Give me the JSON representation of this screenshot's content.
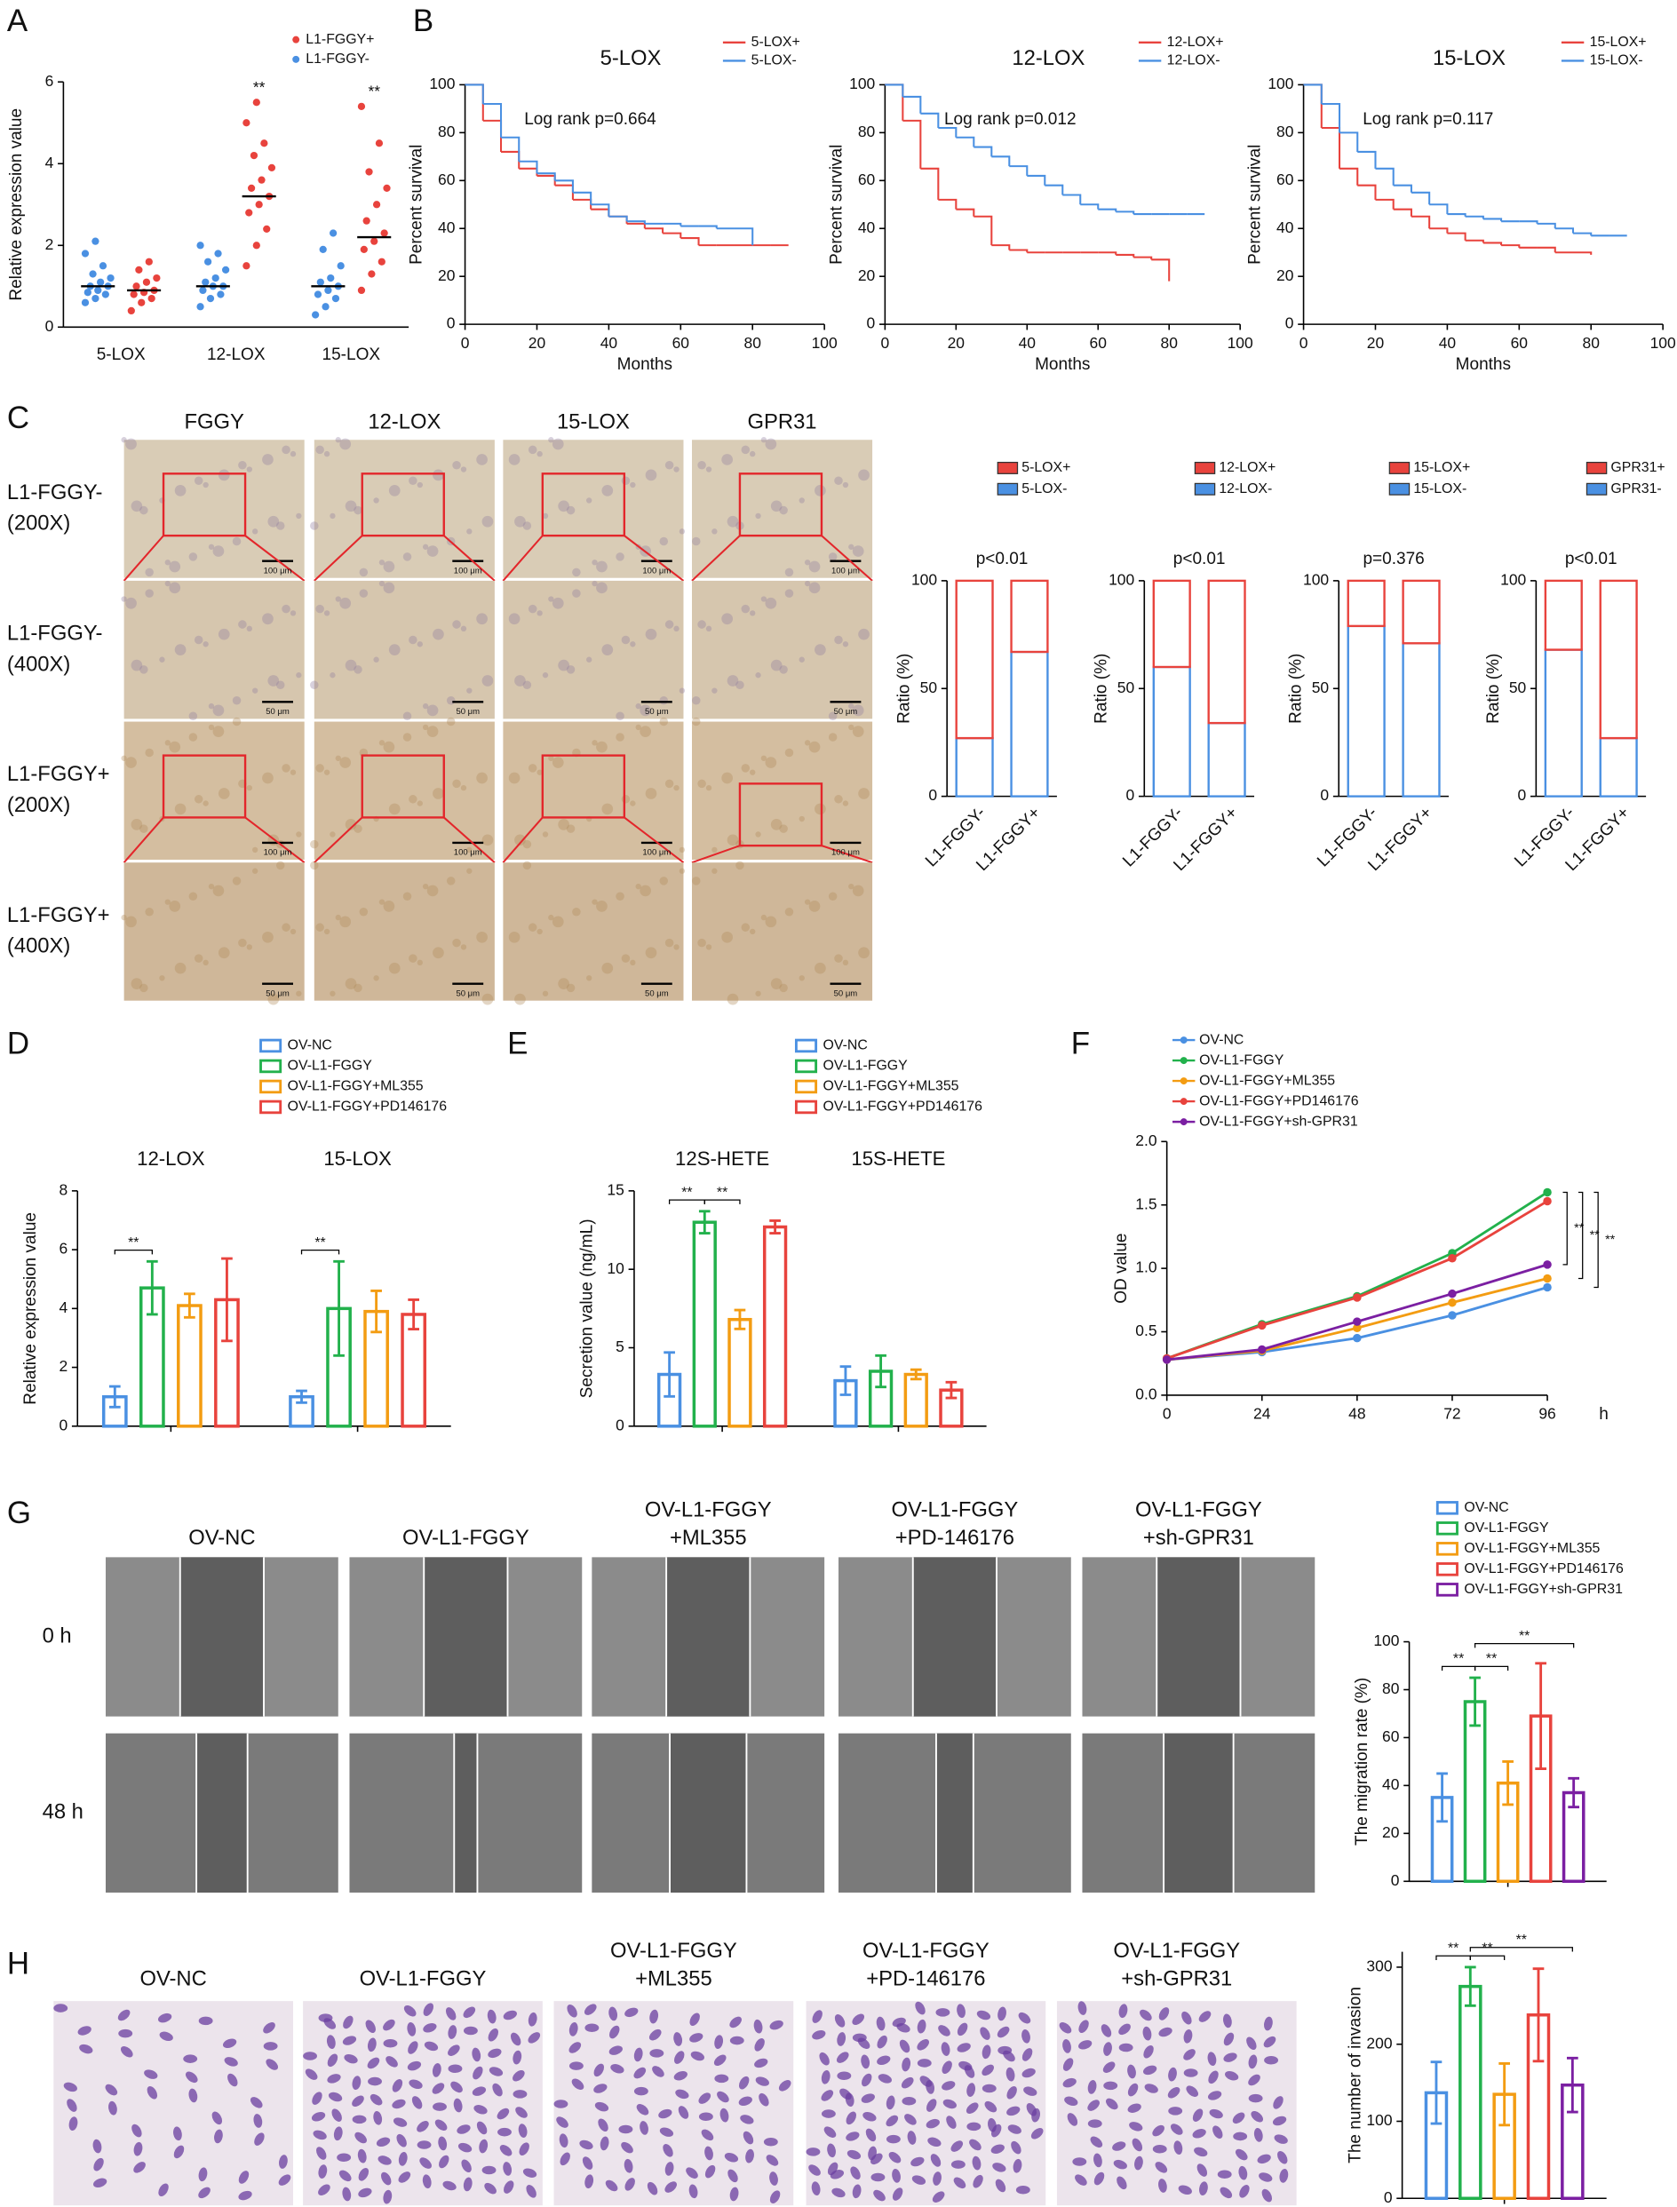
{
  "image_panels": [
    {
      "panel": "C",
      "columns": [
        [
          "FGGY"
        ],
        [
          "12-LOX"
        ],
        [
          "15-LOX"
        ],
        [
          "GPR31"
        ]
      ],
      "rows": [
        [
          "L1-FGGY-",
          "(200X)"
        ],
        [
          "L1-FGGY-",
          "(400X)"
        ],
        [
          "L1-FGGY+",
          "(200X)"
        ],
        [
          "L1-FGGY+",
          "(400X)"
        ]
      ],
      "scale_bars": [
        "100 μm",
        "50 μm",
        "100 μm",
        "50 μm"
      ]
    },
    {
      "panel": "G",
      "columns": [
        [
          "OV-NC"
        ],
        [
          "OV-L1-FGGY"
        ],
        [
          "OV-L1-FGGY",
          "+ML355"
        ],
        [
          "OV-L1-FGGY",
          "+PD-146176"
        ],
        [
          "OV-L1-FGGY",
          "+sh-GPR31"
        ]
      ],
      "rows": [
        [
          "0 h"
        ],
        [
          "48 h"
        ]
      ]
    },
    {
      "panel": "H",
      "columns": [
        [
          "OV-NC"
        ],
        [
          "OV-L1-FGGY"
        ],
        [
          "OV-L1-FGGY",
          "+ML355"
        ],
        [
          "OV-L1-FGGY",
          "+PD-146176"
        ],
        [
          "OV-L1-FGGY",
          "+sh-GPR31"
        ]
      ]
    }
  ],
  "chart_data": [
    {
      "type": "dot",
      "panel": "A",
      "ylabel": "Relative expression value",
      "categories": [
        "5-LOX",
        "12-LOX",
        "15-LOX"
      ],
      "ylim": [
        0,
        6
      ],
      "yticks": [
        0,
        2,
        4,
        6
      ],
      "series": [
        {
          "name": "L1-FGGY+",
          "color": "#e8433d",
          "values": [
            [
              0.4,
              0.6,
              0.7,
              0.8,
              0.85,
              0.9,
              1.0,
              1.1,
              1.2,
              1.4,
              1.6
            ],
            [
              1.5,
              2.0,
              2.4,
              2.8,
              3.0,
              3.2,
              3.4,
              3.6,
              3.9,
              4.2,
              4.5,
              5.0,
              5.5
            ],
            [
              0.9,
              1.3,
              1.6,
              1.9,
              2.1,
              2.3,
              2.6,
              3.0,
              3.4,
              3.8,
              4.5,
              5.4
            ]
          ],
          "means": [
            0.9,
            3.2,
            2.2
          ]
        },
        {
          "name": "L1-FGGY-",
          "color": "#4a90e2",
          "values": [
            [
              0.6,
              0.7,
              0.8,
              0.85,
              0.9,
              1.0,
              1.0,
              1.1,
              1.2,
              1.3,
              1.5,
              1.8,
              2.1
            ],
            [
              0.5,
              0.7,
              0.8,
              0.9,
              1.0,
              1.0,
              1.1,
              1.2,
              1.4,
              1.6,
              1.8,
              2.0
            ],
            [
              0.3,
              0.5,
              0.7,
              0.8,
              0.9,
              1.0,
              1.1,
              1.2,
              1.5,
              1.9,
              2.3
            ]
          ],
          "means": [
            1.0,
            1.0,
            1.0
          ]
        }
      ],
      "annotations": [
        {
          "category": "12-LOX",
          "series": "L1-FGGY+",
          "text": "**"
        },
        {
          "category": "15-LOX",
          "series": "L1-FGGY+",
          "text": "**"
        }
      ]
    },
    {
      "type": "km",
      "panel": "B",
      "title": "5-LOX",
      "annotation": "Log rank p=0.664",
      "xlabel": "Months",
      "ylabel": "Percent survival",
      "x": [
        0,
        5,
        10,
        15,
        20,
        25,
        30,
        35,
        40,
        45,
        50,
        55,
        60,
        65,
        70,
        75,
        80,
        85,
        90
      ],
      "xlim": [
        0,
        100
      ],
      "xticks": [
        0,
        20,
        40,
        60,
        80,
        100
      ],
      "ylim": [
        0,
        100
      ],
      "yticks": [
        0,
        20,
        40,
        60,
        80,
        100
      ],
      "series": [
        {
          "name": "5-LOX+",
          "color": "#e8433d",
          "values": [
            100,
            85,
            72,
            65,
            62,
            58,
            52,
            48,
            45,
            42,
            40,
            38,
            36,
            33,
            33,
            33,
            33,
            33,
            33
          ]
        },
        {
          "name": "5-LOX-",
          "color": "#4a90e2",
          "values": [
            100,
            92,
            78,
            68,
            63,
            60,
            55,
            50,
            45,
            43,
            42,
            42,
            41,
            41,
            40,
            40,
            33,
            null,
            null
          ]
        }
      ]
    },
    {
      "type": "km",
      "title": "12-LOX",
      "annotation": "Log rank p=0.012",
      "xlabel": "Months",
      "ylabel": "Percent survival",
      "x": [
        0,
        5,
        10,
        15,
        20,
        25,
        30,
        35,
        40,
        45,
        50,
        55,
        60,
        65,
        70,
        75,
        80,
        85,
        90
      ],
      "xlim": [
        0,
        100
      ],
      "xticks": [
        0,
        20,
        40,
        60,
        80,
        100
      ],
      "ylim": [
        0,
        100
      ],
      "yticks": [
        0,
        20,
        40,
        60,
        80,
        100
      ],
      "series": [
        {
          "name": "12-LOX+",
          "color": "#e8433d",
          "values": [
            100,
            85,
            65,
            52,
            48,
            45,
            33,
            31,
            30,
            30,
            30,
            30,
            30,
            29,
            28,
            27,
            18,
            null,
            null
          ]
        },
        {
          "name": "12-LOX-",
          "color": "#4a90e2",
          "values": [
            100,
            95,
            88,
            82,
            78,
            74,
            70,
            66,
            62,
            58,
            54,
            50,
            48,
            47,
            46,
            46,
            46,
            46,
            46
          ]
        }
      ]
    },
    {
      "type": "km",
      "title": "15-LOX",
      "annotation": "Log rank p=0.117",
      "xlabel": "Months",
      "ylabel": "Percent survival",
      "x": [
        0,
        5,
        10,
        15,
        20,
        25,
        30,
        35,
        40,
        45,
        50,
        55,
        60,
        65,
        70,
        75,
        80,
        85,
        90
      ],
      "xlim": [
        0,
        100
      ],
      "xticks": [
        0,
        20,
        40,
        60,
        80,
        100
      ],
      "ylim": [
        0,
        100
      ],
      "yticks": [
        0,
        20,
        40,
        60,
        80,
        100
      ],
      "series": [
        {
          "name": "15-LOX+",
          "color": "#e8433d",
          "values": [
            100,
            82,
            65,
            58,
            52,
            48,
            45,
            40,
            38,
            35,
            34,
            33,
            32,
            32,
            30,
            30,
            29,
            null,
            null
          ]
        },
        {
          "name": "15-LOX-",
          "color": "#4a90e2",
          "values": [
            100,
            92,
            80,
            72,
            65,
            58,
            55,
            50,
            46,
            45,
            44,
            43,
            43,
            42,
            40,
            38,
            37,
            37,
            37
          ]
        }
      ]
    },
    {
      "type": "stacked",
      "annotation": "p<0.01",
      "ylabel": "Ratio (%)",
      "categories": [
        "L1-FGGY-",
        "L1-FGGY+"
      ],
      "ylim": [
        0,
        100
      ],
      "yticks": [
        0,
        50,
        100
      ],
      "series": [
        {
          "name": "5-LOX+",
          "color": "#e8433d",
          "values": [
            73,
            33
          ]
        },
        {
          "name": "5-LOX-",
          "color": "#4a90e2",
          "values": [
            27,
            67
          ]
        }
      ]
    },
    {
      "type": "stacked",
      "annotation": "p<0.01",
      "ylabel": "Ratio (%)",
      "categories": [
        "L1-FGGY-",
        "L1-FGGY+"
      ],
      "ylim": [
        0,
        100
      ],
      "yticks": [
        0,
        50,
        100
      ],
      "series": [
        {
          "name": "12-LOX+",
          "color": "#e8433d",
          "values": [
            40,
            66
          ]
        },
        {
          "name": "12-LOX-",
          "color": "#4a90e2",
          "values": [
            60,
            34
          ]
        }
      ]
    },
    {
      "type": "stacked",
      "annotation": "p=0.376",
      "ylabel": "Ratio (%)",
      "categories": [
        "L1-FGGY-",
        "L1-FGGY+"
      ],
      "ylim": [
        0,
        100
      ],
      "yticks": [
        0,
        50,
        100
      ],
      "series": [
        {
          "name": "15-LOX+",
          "color": "#e8433d",
          "values": [
            21,
            29
          ]
        },
        {
          "name": "15-LOX-",
          "color": "#4a90e2",
          "values": [
            79,
            71
          ]
        }
      ]
    },
    {
      "type": "stacked",
      "annotation": "p<0.01",
      "ylabel": "Ratio (%)",
      "categories": [
        "L1-FGGY-",
        "L1-FGGY+"
      ],
      "ylim": [
        0,
        100
      ],
      "yticks": [
        0,
        50,
        100
      ],
      "series": [
        {
          "name": "GPR31+",
          "color": "#e8433d",
          "values": [
            32,
            73
          ]
        },
        {
          "name": "GPR31-",
          "color": "#4a90e2",
          "values": [
            68,
            27
          ]
        }
      ]
    },
    {
      "type": "grouped",
      "panel": "D",
      "legend": true,
      "ylabel": "Relative expression value",
      "categories": [
        "12-LOX",
        "15-LOX"
      ],
      "ylim": [
        0,
        8
      ],
      "yticks": [
        0,
        2,
        4,
        6,
        8
      ],
      "series": [
        {
          "name": "OV-NC",
          "color": "#4a90e2",
          "values": [
            1.0,
            1.0
          ],
          "errors": [
            0.35,
            0.2
          ]
        },
        {
          "name": "OV-L1-FGGY",
          "color": "#22b14c",
          "values": [
            4.7,
            4.0
          ],
          "errors": [
            0.9,
            1.6
          ]
        },
        {
          "name": "OV-L1-FGGY+ML355",
          "color": "#f39c12",
          "values": [
            4.1,
            3.9
          ],
          "errors": [
            0.4,
            0.7
          ]
        },
        {
          "name": "OV-L1-FGGY+PD146176",
          "color": "#e8433d",
          "values": [
            4.3,
            3.8
          ],
          "errors": [
            1.4,
            0.5
          ]
        }
      ],
      "brackets": [
        {
          "category": "12-LOX",
          "between": [
            "OV-NC",
            "OV-L1-FGGY"
          ],
          "text": "**"
        },
        {
          "category": "15-LOX",
          "between": [
            "OV-NC",
            "OV-L1-FGGY"
          ],
          "text": "**"
        }
      ]
    },
    {
      "type": "grouped",
      "panel": "E",
      "legend": true,
      "ylabel": "Secretion value (ng/mL)",
      "categories": [
        "12S-HETE",
        "15S-HETE"
      ],
      "ylim": [
        0,
        15
      ],
      "yticks": [
        0,
        5,
        10,
        15
      ],
      "series": [
        {
          "name": "OV-NC",
          "color": "#4a90e2",
          "values": [
            3.3,
            2.9
          ],
          "errors": [
            1.4,
            0.9
          ]
        },
        {
          "name": "OV-L1-FGGY",
          "color": "#22b14c",
          "values": [
            13.0,
            3.5
          ],
          "errors": [
            0.7,
            1.0
          ]
        },
        {
          "name": "OV-L1-FGGY+ML355",
          "color": "#f39c12",
          "values": [
            6.8,
            3.3
          ],
          "errors": [
            0.6,
            0.3
          ]
        },
        {
          "name": "OV-L1-FGGY+PD146176",
          "color": "#e8433d",
          "values": [
            12.7,
            2.3
          ],
          "errors": [
            0.4,
            0.5
          ]
        }
      ],
      "brackets": [
        {
          "category": "12S-HETE",
          "between": [
            "OV-NC",
            "OV-L1-FGGY"
          ],
          "text": "**"
        },
        {
          "category": "12S-HETE",
          "between": [
            "OV-L1-FGGY",
            "OV-L1-FGGY+ML355"
          ],
          "text": "**"
        }
      ]
    },
    {
      "type": "line",
      "panel": "F",
      "ylabel": "OD value",
      "xlabel": "h",
      "x": [
        0,
        24,
        48,
        72,
        96
      ],
      "xlim": [
        0,
        96
      ],
      "xticks": [
        0,
        24,
        48,
        72,
        96
      ],
      "ylim": [
        0,
        2
      ],
      "yticks": [
        {
          "value": 0,
          "label": "0.0"
        },
        0.5,
        {
          "value": 1,
          "label": "1.0"
        },
        1.5,
        {
          "value": 2,
          "label": "2.0"
        }
      ],
      "series": [
        {
          "name": "OV-NC",
          "color": "#4a90e2",
          "values": [
            0.28,
            0.34,
            0.45,
            0.63,
            0.85
          ]
        },
        {
          "name": "OV-L1-FGGY",
          "color": "#22b14c",
          "values": [
            0.29,
            0.56,
            0.78,
            1.12,
            1.6
          ]
        },
        {
          "name": "OV-L1-FGGY+ML355",
          "color": "#f39c12",
          "values": [
            0.28,
            0.35,
            0.53,
            0.73,
            0.92
          ]
        },
        {
          "name": "OV-L1-FGGY+PD146176",
          "color": "#e8433d",
          "values": [
            0.29,
            0.55,
            0.77,
            1.08,
            1.53
          ]
        },
        {
          "name": "OV-L1-FGGY+sh-GPR31",
          "color": "#7b1fa2",
          "values": [
            0.28,
            0.36,
            0.58,
            0.8,
            1.03
          ]
        }
      ],
      "brackets": [
        {
          "between": [
            "OV-L1-FGGY",
            "OV-L1-FGGY+sh-GPR31"
          ],
          "text": "**"
        },
        {
          "between": [
            "OV-L1-FGGY",
            "OV-L1-FGGY+ML355"
          ],
          "text": "**"
        },
        {
          "between": [
            "OV-L1-FGGY",
            "OV-NC"
          ],
          "text": "**"
        }
      ]
    },
    {
      "type": "grouped",
      "legend": true,
      "ylabel": "The migration rate (%)",
      "categories": [
        null
      ],
      "ylim": [
        0,
        100
      ],
      "yticks": [
        0,
        20,
        40,
        60,
        80,
        100
      ],
      "series": [
        {
          "name": "OV-NC",
          "color": "#4a90e2",
          "values": [
            35
          ],
          "errors": [
            10
          ]
        },
        {
          "name": "OV-L1-FGGY",
          "color": "#22b14c",
          "values": [
            75
          ],
          "errors": [
            10
          ]
        },
        {
          "name": "OV-L1-FGGY+ML355",
          "color": "#f39c12",
          "values": [
            41
          ],
          "errors": [
            9
          ]
        },
        {
          "name": "OV-L1-FGGY+PD146176",
          "color": "#e8433d",
          "values": [
            69
          ],
          "errors": [
            22
          ]
        },
        {
          "name": "OV-L1-FGGY+sh-GPR31",
          "color": "#7b1fa2",
          "values": [
            37
          ],
          "errors": [
            6
          ]
        }
      ],
      "brackets": [
        {
          "between": [
            "OV-NC",
            "OV-L1-FGGY"
          ],
          "text": "**"
        },
        {
          "between": [
            "OV-L1-FGGY",
            "OV-L1-FGGY+ML355"
          ],
          "text": "**"
        },
        {
          "between": [
            "OV-L1-FGGY",
            "OV-L1-FGGY+sh-GPR31"
          ],
          "text": "**"
        }
      ]
    },
    {
      "type": "grouped",
      "legend": false,
      "ylabel": "The number of invasion",
      "categories": [
        null
      ],
      "ylim": [
        0,
        320
      ],
      "yticks": [
        0,
        100,
        200,
        300
      ],
      "series": [
        {
          "name": "OV-NC",
          "color": "#4a90e2",
          "values": [
            137
          ],
          "errors": [
            40
          ]
        },
        {
          "name": "OV-L1-FGGY",
          "color": "#22b14c",
          "values": [
            275
          ],
          "errors": [
            25
          ]
        },
        {
          "name": "OV-L1-FGGY+ML355",
          "color": "#f39c12",
          "values": [
            135
          ],
          "errors": [
            40
          ]
        },
        {
          "name": "OV-L1-FGGY+PD146176",
          "color": "#e8433d",
          "values": [
            238
          ],
          "errors": [
            60
          ]
        },
        {
          "name": "OV-L1-FGGY+sh-GPR31",
          "color": "#7b1fa2",
          "values": [
            147
          ],
          "errors": [
            35
          ]
        }
      ],
      "brackets": [
        {
          "between": [
            "OV-NC",
            "OV-L1-FGGY"
          ],
          "text": "**"
        },
        {
          "between": [
            "OV-L1-FGGY",
            "OV-L1-FGGY+ML355"
          ],
          "text": "**"
        },
        {
          "between": [
            "OV-L1-FGGY",
            "OV-L1-FGGY+sh-GPR31"
          ],
          "text": "**"
        }
      ]
    }
  ]
}
